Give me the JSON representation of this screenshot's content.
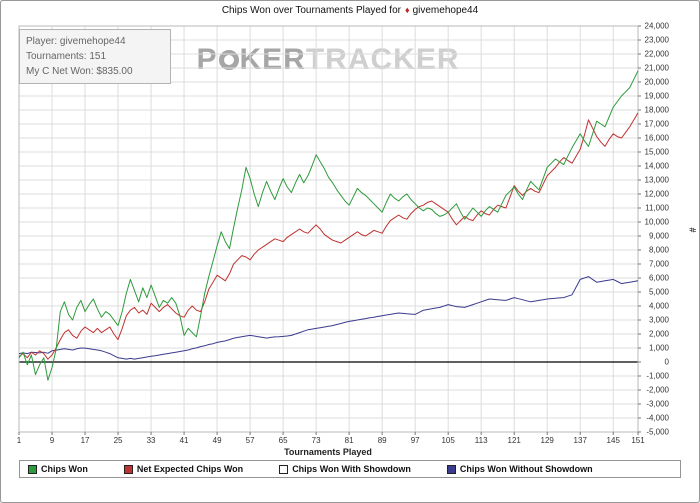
{
  "header": {
    "title_prefix": "Chips Won over Tournaments Played for",
    "player": "givemehope44"
  },
  "info_box": {
    "player_line": "Player: givemehope44",
    "tournaments_line": "Tournaments: 151",
    "net_won_line": "My C Net Won: $835.00"
  },
  "watermark": {
    "p": "P",
    "ker": "KER",
    "tracker": "TRACKER"
  },
  "colors": {
    "grid": "#dcdcdc",
    "zero_line": "#000000",
    "plot_border": "#b8b8b8",
    "axis_text": "#333333",
    "tick": "#777777"
  },
  "legend": {
    "items": [
      {
        "id": "chips-won",
        "label": "Chips Won",
        "color": "#2e9b3c"
      },
      {
        "id": "net-expected-chips-won",
        "label": "Net Expected Chips Won",
        "color": "#bf3330"
      },
      {
        "id": "chips-won-with-showdown",
        "label": "Chips Won With Showdown",
        "color": "#ffffff"
      },
      {
        "id": "chips-won-without-showdown",
        "label": "Chips Won Without Showdown",
        "color": "#3b3b8f"
      }
    ]
  },
  "chart_data": {
    "type": "line",
    "title": "Chips Won over Tournaments Played",
    "xlabel": "Tournaments Played",
    "ylabel": "#",
    "grid": true,
    "legend_position": "bottom",
    "hidden_series": [
      "Chips Won With Showdown"
    ],
    "axis": {
      "x_min": 1,
      "x_max": 151,
      "y_min": -5000,
      "y_max": 24000,
      "y_step": 1000,
      "x_ticks": [
        1,
        9,
        17,
        25,
        33,
        41,
        49,
        57,
        65,
        73,
        81,
        89,
        97,
        105,
        113,
        121,
        129,
        137,
        145,
        151
      ]
    },
    "series": [
      {
        "id": "chips-won",
        "name": "Chips Won",
        "color": "#2e9b3c",
        "values": [
          300,
          700,
          -200,
          500,
          -900,
          -200,
          300,
          -1300,
          -400,
          900,
          3600,
          4300,
          3400,
          3000,
          3900,
          4400,
          3600,
          4100,
          4500,
          3800,
          3200,
          3600,
          3400,
          3000,
          2600,
          3600,
          4900,
          5900,
          5100,
          4300,
          5300,
          4600,
          5500,
          4700,
          3900,
          4400,
          4200,
          4600,
          4200,
          3300,
          1900,
          2400,
          2100,
          1800,
          3300,
          4900,
          6100,
          7200,
          8300,
          9300,
          8600,
          8100,
          9600,
          11000,
          12300,
          13900,
          13100,
          12000,
          11100,
          12100,
          12900,
          12200,
          11600,
          12400,
          13100,
          12500,
          12100,
          12800,
          13400,
          12800,
          13300,
          14000,
          14800,
          14300,
          13800,
          13200,
          12800,
          12300,
          11900,
          11500,
          11200,
          11800,
          12400,
          12100,
          11900,
          11600,
          11300,
          11000,
          10700,
          11400,
          12000,
          11700,
          11500,
          11800,
          12000,
          11600,
          11300,
          11000,
          10800,
          11000,
          10900,
          10600,
          10400,
          10500,
          10700,
          11000,
          11300,
          10700,
          10200,
          10600,
          11000,
          10700,
          10400,
          10800,
          11100,
          10900,
          10700,
          11300,
          11900,
          12200,
          12500,
          12000,
          11600,
          12300,
          12900,
          12600,
          12300,
          13100,
          13900,
          14200,
          14500,
          14300,
          14100,
          14700,
          15300,
          15800,
          16300,
          15800,
          15400,
          16300,
          17200,
          17000,
          16800,
          17500,
          18200,
          18600,
          19000,
          19300,
          19600,
          20200,
          20800
        ]
      },
      {
        "id": "net-expected-chips-won",
        "name": "Net Expected Chips Won",
        "color": "#bf3330",
        "values": [
          400,
          600,
          300,
          700,
          500,
          800,
          600,
          200,
          500,
          1000,
          1600,
          2100,
          2300,
          1900,
          1700,
          2200,
          2500,
          2300,
          2100,
          2400,
          2100,
          2300,
          2500,
          2000,
          1600,
          2400,
          3300,
          3700,
          3900,
          3500,
          3700,
          3400,
          4200,
          3900,
          3600,
          3900,
          4100,
          3800,
          3500,
          3300,
          3200,
          3700,
          4000,
          3700,
          3600,
          4300,
          5200,
          5700,
          6200,
          6000,
          5800,
          6300,
          7000,
          7300,
          7600,
          7500,
          7300,
          7700,
          8000,
          8200,
          8400,
          8600,
          8800,
          8700,
          8600,
          8900,
          9100,
          9300,
          9500,
          9300,
          9200,
          9500,
          9800,
          9500,
          9100,
          8900,
          8700,
          8600,
          8500,
          8700,
          8900,
          9100,
          9300,
          9100,
          9000,
          9200,
          9400,
          9300,
          9200,
          9700,
          10100,
          10300,
          10500,
          10300,
          10200,
          10600,
          10900,
          11100,
          11200,
          11400,
          11500,
          11300,
          11100,
          10900,
          10700,
          10200,
          9800,
          10100,
          10400,
          10200,
          10100,
          10500,
          10800,
          10600,
          10500,
          10900,
          11200,
          11100,
          11000,
          11800,
          12600,
          12200,
          11900,
          12200,
          12400,
          12200,
          12100,
          12700,
          13300,
          13600,
          13900,
          14300,
          14600,
          14400,
          14200,
          14700,
          15200,
          16200,
          17300,
          16700,
          16100,
          15700,
          15400,
          15900,
          16300,
          16100,
          16000,
          16400,
          16800,
          17300,
          17800
        ]
      },
      {
        "id": "chips-won-without-showdown",
        "name": "Chips Won Without Showdown",
        "color": "#3b3b8f",
        "values": [
          600,
          650,
          600,
          700,
          680,
          650,
          700,
          620,
          800,
          840,
          900,
          940,
          900,
          860,
          940,
          1000,
          990,
          950,
          900,
          860,
          800,
          700,
          600,
          450,
          300,
          260,
          210,
          260,
          210,
          260,
          310,
          360,
          410,
          450,
          500,
          550,
          600,
          650,
          700,
          750,
          800,
          860,
          950,
          1010,
          1100,
          1160,
          1250,
          1310,
          1400,
          1460,
          1510,
          1600,
          1700,
          1760,
          1810,
          1860,
          1900,
          1860,
          1810,
          1760,
          1710,
          1760,
          1790,
          1810,
          1830,
          1860,
          1900,
          2000,
          2100,
          2200,
          2300,
          2350,
          2400,
          2450,
          2500,
          2550,
          2600,
          2680,
          2750,
          2830,
          2900,
          2950,
          3000,
          3060,
          3100,
          3160,
          3200,
          3260,
          3300,
          3360,
          3400,
          3460,
          3500,
          3470,
          3440,
          3420,
          3400,
          3550,
          3700,
          3750,
          3800,
          3860,
          3900,
          4000,
          4100,
          4030,
          3960,
          3930,
          3900,
          4000,
          4100,
          4200,
          4300,
          4400,
          4500,
          4470,
          4440,
          4420,
          4400,
          4500,
          4600,
          4520,
          4450,
          4370,
          4300,
          4350,
          4400,
          4450,
          4500,
          4530,
          4550,
          4580,
          4600,
          4700,
          4800,
          5350,
          5900,
          6000,
          6100,
          5900,
          5700,
          5750,
          5800,
          5850,
          5900,
          5750,
          5600,
          5650,
          5700,
          5750,
          5800
        ]
      }
    ]
  }
}
